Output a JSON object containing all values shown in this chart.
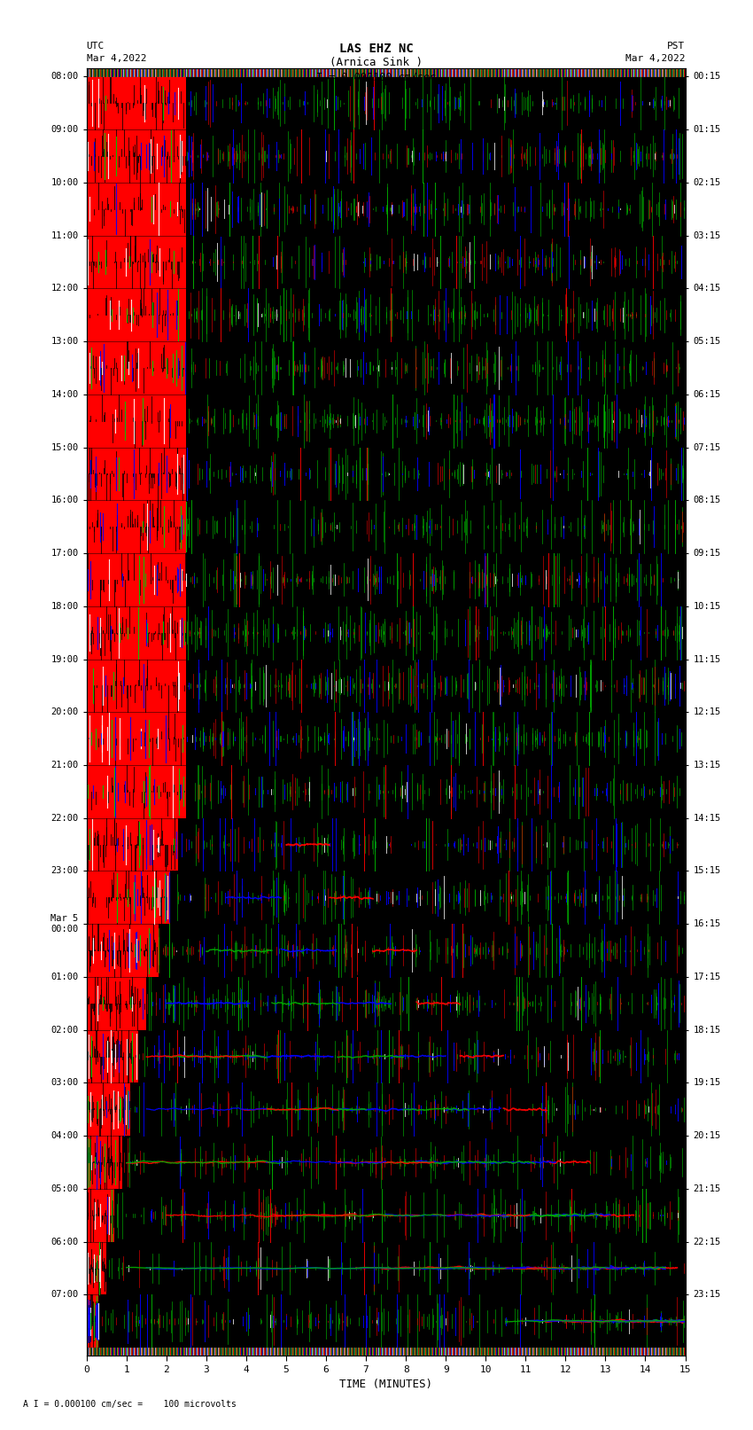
{
  "title_line1": "LAS EHZ NC",
  "title_line2": "(Arnica Sink )",
  "title_line3": "I = 0.000100 cm/sec",
  "left_label_top": "UTC",
  "left_label_date": "Mar 4,2022",
  "right_label_top": "PST",
  "right_label_date": "Mar 4,2022",
  "xlabel": "TIME (MINUTES)",
  "footnote": "A I = 0.000100 cm/sec =    100 microvolts",
  "utc_times": [
    "08:00",
    "09:00",
    "10:00",
    "11:00",
    "12:00",
    "13:00",
    "14:00",
    "15:00",
    "16:00",
    "17:00",
    "18:00",
    "19:00",
    "20:00",
    "21:00",
    "22:00",
    "23:00",
    "Mar 5\n00:00",
    "01:00",
    "02:00",
    "03:00",
    "04:00",
    "05:00",
    "06:00",
    "07:00"
  ],
  "pst_times": [
    "00:15",
    "01:15",
    "02:15",
    "03:15",
    "04:15",
    "05:15",
    "06:15",
    "07:15",
    "08:15",
    "09:15",
    "10:15",
    "11:15",
    "12:15",
    "13:15",
    "14:15",
    "15:15",
    "16:15",
    "17:15",
    "18:15",
    "19:15",
    "20:15",
    "21:15",
    "22:15",
    "23:15"
  ],
  "x_ticks": [
    0,
    1,
    2,
    3,
    4,
    5,
    6,
    7,
    8,
    9,
    10,
    11,
    12,
    13,
    14,
    15
  ],
  "xlim": [
    0,
    15
  ],
  "n_rows": 24,
  "bg_color": "#000000",
  "fig_bg": "#ffffff",
  "noise_seed": 42,
  "red_cutoff_x": [
    2.5,
    2.5,
    2.5,
    2.5,
    2.5,
    2.5,
    2.5,
    2.5,
    2.5,
    2.5,
    2.5,
    2.5,
    2.5,
    2.5,
    2.3,
    2.1,
    1.8,
    1.5,
    1.3,
    1.1,
    0.9,
    0.7,
    0.5,
    0.3
  ]
}
